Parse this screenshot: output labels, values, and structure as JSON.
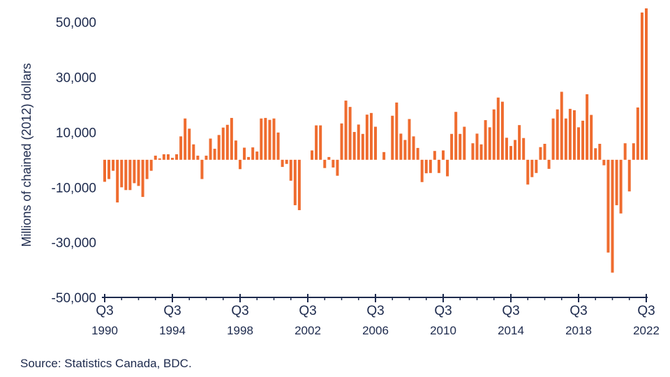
{
  "chart_data": {
    "type": "bar",
    "ylabel": "Millions of chained (2012) dollars",
    "ylim": [
      -50000,
      55000
    ],
    "yticks": [
      50000,
      30000,
      10000,
      -10000,
      -30000,
      -50000
    ],
    "ytick_labels": [
      "50,000",
      "30,000",
      "10,000",
      "-10,000",
      "-30,000",
      "-50,000"
    ],
    "x_start": "1990-Q3",
    "x_ticks": [
      {
        "index": 0,
        "quarter": "Q3",
        "year": "1990"
      },
      {
        "index": 16,
        "quarter": "Q3",
        "year": "1994"
      },
      {
        "index": 32,
        "quarter": "Q3",
        "year": "1998"
      },
      {
        "index": 48,
        "quarter": "Q3",
        "year": "2002"
      },
      {
        "index": 64,
        "quarter": "Q3",
        "year": "2006"
      },
      {
        "index": 80,
        "quarter": "Q3",
        "year": "2010"
      },
      {
        "index": 96,
        "quarter": "Q3",
        "year": "2014"
      },
      {
        "index": 112,
        "quarter": "Q3",
        "year": "2018"
      },
      {
        "index": 128,
        "quarter": "Q3",
        "year": "2022"
      }
    ],
    "values": [
      -8000,
      -7000,
      -4000,
      -15500,
      -10000,
      -11000,
      -11000,
      -8500,
      -9500,
      -13500,
      -7000,
      -4000,
      1500,
      500,
      2000,
      2000,
      700,
      2000,
      8500,
      15000,
      11300,
      5600,
      1500,
      -7000,
      1500,
      7700,
      4000,
      9000,
      11700,
      12700,
      15200,
      7000,
      -3400,
      4400,
      1000,
      4500,
      3000,
      15000,
      15200,
      14500,
      15000,
      9900,
      -2600,
      -1500,
      -7600,
      -16500,
      -18300,
      0,
      0,
      3400,
      12500,
      12500,
      -3000,
      1000,
      -2800,
      -5800,
      13200,
      21500,
      19200,
      10100,
      12800,
      9400,
      16400,
      17000,
      12000,
      0,
      2800,
      0,
      16000,
      20800,
      9500,
      7200,
      14800,
      8500,
      4300,
      -8100,
      -4900,
      -4800,
      3200,
      -4800,
      3400,
      -6000,
      9400,
      17400,
      9400,
      12000,
      0,
      6000,
      9500,
      5600,
      14400,
      11800,
      18300,
      22600,
      21100,
      8000,
      5000,
      7200,
      12600,
      7900,
      -9000,
      -6300,
      -4800,
      4600,
      5800,
      -3300,
      15000,
      18300,
      24700,
      15000,
      18500,
      18000,
      11800,
      14200,
      23800,
      16300,
      4200,
      5800,
      -2000,
      -33700,
      -41000,
      -16500,
      -19500,
      6000,
      -11500,
      6000,
      19000,
      53500,
      55000
    ]
  },
  "source": "Source: Statistics Canada, BDC."
}
